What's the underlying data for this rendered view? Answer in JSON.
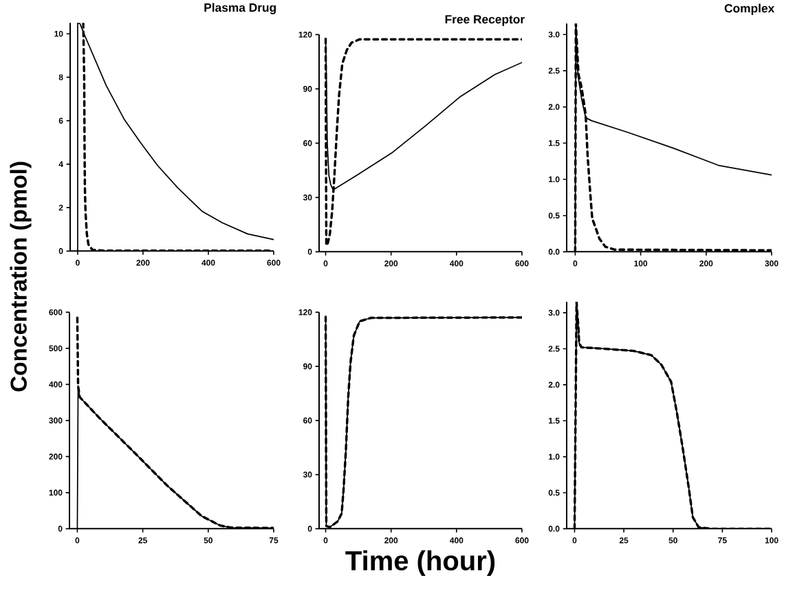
{
  "chart_data": [
    {
      "type": "line",
      "title": "Plasma Drug",
      "ylabel": "Concentration (pmol)",
      "xlim": [
        -23,
        600
      ],
      "ylim": [
        0,
        10.5
      ],
      "xticks": [
        0,
        200,
        400,
        600
      ],
      "yticks": [
        0,
        2,
        4,
        6,
        8,
        10
      ],
      "series": [
        {
          "color": "#000000",
          "line_style": "solid",
          "x": [
            0,
            0,
            7,
            24,
            87,
            143,
            192,
            244,
            307,
            380,
            443,
            520,
            600
          ],
          "values": [
            0,
            10.5,
            10.47,
            9.84,
            7.63,
            6.05,
            5.0,
            3.95,
            2.9,
            1.84,
            1.3,
            0.79,
            0.53
          ]
        },
        {
          "color": "#000000",
          "line_style": "dashed",
          "x": [
            17,
            20,
            21,
            22,
            24,
            28,
            33,
            45,
            80,
            586
          ],
          "values": [
            10.5,
            8,
            5,
            3,
            1.8,
            0.8,
            0.3,
            0.06,
            0.02,
            0.02
          ]
        }
      ]
    },
    {
      "type": "line",
      "title": "Free Receptor",
      "xlim": [
        -20,
        600
      ],
      "ylim": [
        0,
        120
      ],
      "xticks": [
        0,
        200,
        400,
        600
      ],
      "yticks": [
        0,
        30,
        60,
        90,
        120
      ],
      "series": [
        {
          "color": "#000000",
          "line_style": "solid",
          "x": [
            0,
            2,
            5,
            10,
            16,
            23,
            97,
            202,
            307,
            412,
            517,
            600
          ],
          "values": [
            117.5,
            100,
            60,
            42,
            36.8,
            34.2,
            42.5,
            54.6,
            69.9,
            85.8,
            97.9,
            104.6
          ]
        },
        {
          "color": "#000000",
          "line_style": "dashed",
          "x": [
            0,
            1,
            2,
            7,
            13,
            20,
            27,
            34,
            41,
            51,
            65,
            79,
            104,
            600
          ],
          "values": [
            117.7,
            60,
            3.5,
            5,
            10,
            22.7,
            43,
            66,
            86.5,
            104,
            111.6,
            115.5,
            117.4,
            117.4
          ]
        }
      ]
    },
    {
      "type": "line",
      "title": "Complex",
      "xlim": [
        -13,
        300
      ],
      "ylim": [
        0,
        3.15
      ],
      "xticks": [
        0,
        100,
        200,
        300
      ],
      "yticks": [
        {
          "value": 0,
          "label": "0.0"
        },
        0.5,
        {
          "value": 1,
          "label": "1.0"
        },
        1.5,
        {
          "value": 2,
          "label": "2.0"
        },
        2.5,
        {
          "value": 3,
          "label": "3.0"
        }
      ],
      "series": [
        {
          "color": "#000000",
          "line_style": "solid",
          "x": [
            0,
            1,
            4,
            10,
            16,
            25,
            80,
            150,
            220,
            300
          ],
          "values": [
            0,
            3.15,
            2.45,
            2.1,
            1.85,
            1.81,
            1.65,
            1.43,
            1.19,
            1.06
          ]
        },
        {
          "color": "#000000",
          "line_style": "dashed",
          "x": [
            0,
            1,
            5,
            9,
            12,
            16,
            19,
            23,
            26,
            32,
            37,
            46,
            60,
            300
          ],
          "values": [
            0,
            3.15,
            2.45,
            2.3,
            2.14,
            1.89,
            1.32,
            0.81,
            0.46,
            0.31,
            0.18,
            0.07,
            0.03,
            0.02
          ]
        }
      ]
    },
    {
      "type": "line",
      "xlim": [
        -3,
        75
      ],
      "ylim": [
        0,
        600
      ],
      "xticks": [
        0,
        25,
        50,
        75
      ],
      "yticks": [
        0,
        100,
        200,
        300,
        400,
        500,
        600
      ],
      "series": [
        {
          "color": "#000000",
          "line_style": "solid",
          "x": [
            0,
            0.3,
            0.9,
            8.3,
            21.4,
            34.4,
            47.5,
            54.5,
            58.8,
            75
          ],
          "values": [
            0,
            396,
            365,
            308,
            214,
            119,
            35,
            9,
            3,
            2
          ]
        },
        {
          "color": "#000000",
          "line_style": "dashed",
          "x": [
            0,
            0.3,
            0.9,
            8.3,
            21.4,
            34.4,
            47.5,
            54.5,
            58.8,
            75
          ],
          "values": [
            585,
            396,
            365,
            308,
            214,
            119,
            35,
            9,
            3,
            2
          ]
        }
      ]
    },
    {
      "type": "line",
      "xlabel": "Time (hour)",
      "xlim": [
        -20,
        600
      ],
      "ylim": [
        0,
        120
      ],
      "xticks": [
        0,
        200,
        400,
        600
      ],
      "yticks": [
        0,
        30,
        60,
        90,
        120
      ],
      "series": [
        {
          "color": "#000000",
          "line_style": "solid",
          "x": [
            0,
            2,
            13,
            37,
            49,
            55,
            62,
            69,
            76,
            86,
            104,
            139,
            600
          ],
          "values": [
            117.5,
            1.5,
            0.9,
            4.1,
            8.5,
            22.4,
            44,
            73,
            92,
            107,
            115,
            116.9,
            117.1
          ]
        },
        {
          "color": "#000000",
          "line_style": "dashed",
          "x": [
            0,
            2,
            13,
            37,
            49,
            55,
            62,
            69,
            76,
            86,
            104,
            139,
            600
          ],
          "values": [
            117.5,
            1.5,
            0.9,
            4.1,
            8.5,
            22.4,
            44,
            73,
            92,
            107,
            115,
            116.9,
            117.1
          ]
        }
      ]
    },
    {
      "type": "line",
      "xlim": [
        -4,
        100
      ],
      "ylim": [
        0,
        3.15
      ],
      "xticks": [
        0,
        25,
        50,
        75,
        100
      ],
      "yticks": [
        {
          "value": 0,
          "label": "0.0"
        },
        0.5,
        {
          "value": 1,
          "label": "1.0"
        },
        1.5,
        {
          "value": 2,
          "label": "2.0"
        },
        2.5,
        {
          "value": 3,
          "label": "3.0"
        }
      ],
      "series": [
        {
          "color": "#000000",
          "line_style": "solid",
          "x": [
            0,
            1,
            2,
            2.3,
            3.5,
            15,
            30,
            39,
            44,
            49,
            52,
            55,
            58,
            60,
            63,
            69,
            100
          ],
          "values": [
            0,
            3.15,
            2.77,
            2.58,
            2.52,
            2.5,
            2.47,
            2.41,
            2.28,
            2.04,
            1.6,
            1.1,
            0.56,
            0.16,
            0.02,
            0,
            0
          ]
        },
        {
          "color": "#000000",
          "line_style": "dashed",
          "x": [
            0,
            1,
            2,
            2.3,
            3.5,
            15,
            30,
            39,
            44,
            49,
            52,
            55,
            58,
            60,
            63,
            69,
            100
          ],
          "values": [
            0,
            3.15,
            2.77,
            2.58,
            2.52,
            2.5,
            2.47,
            2.41,
            2.28,
            2.04,
            1.6,
            1.1,
            0.56,
            0.16,
            0.02,
            0,
            0
          ]
        }
      ]
    }
  ]
}
